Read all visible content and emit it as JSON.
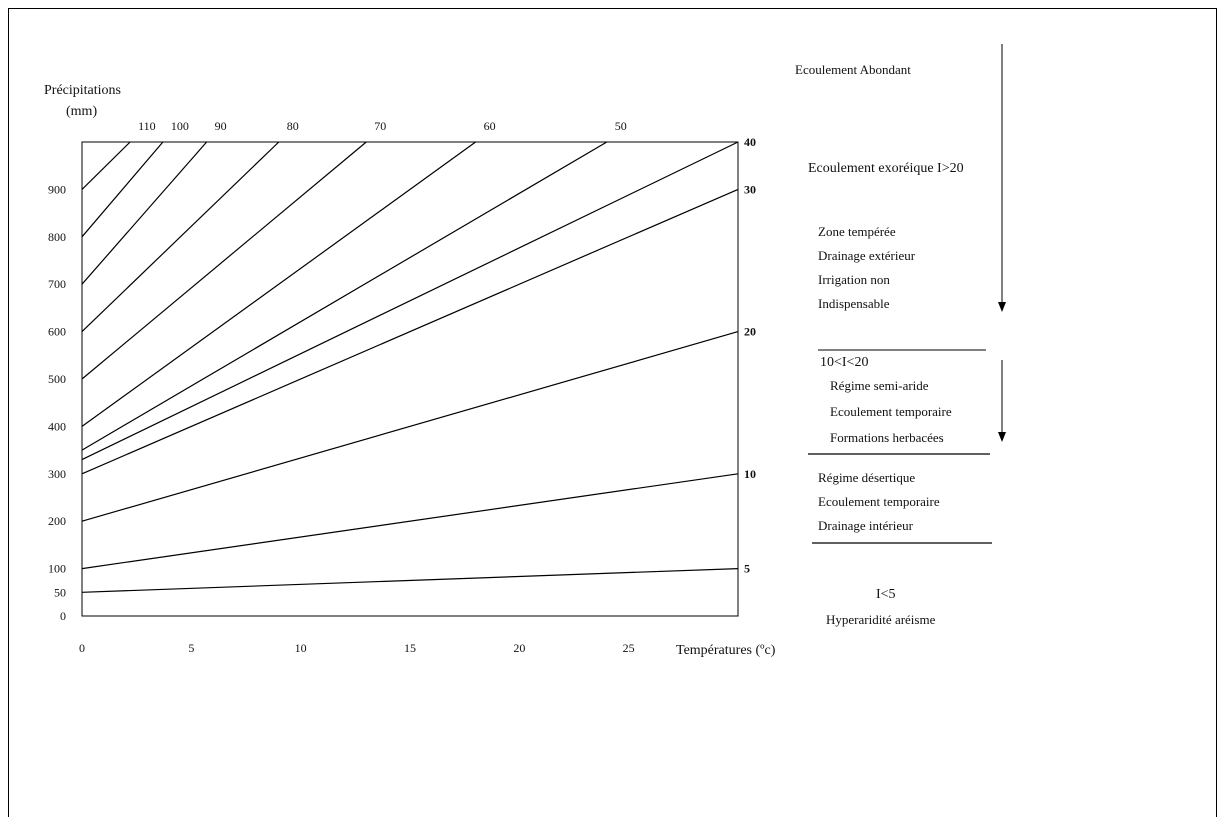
{
  "chart_data": {
    "type": "line",
    "title": "",
    "ylabel_line1": "Précipitations",
    "ylabel_line2": "(mm)",
    "xlabel": "Températures (ºc)",
    "xlim": [
      0,
      30
    ],
    "ylim": [
      0,
      1000
    ],
    "x_ticks": [
      "0",
      "5",
      "10",
      "15",
      "20",
      "25"
    ],
    "y_ticks": [
      "0",
      "50",
      "100",
      "200",
      "300",
      "400",
      "500",
      "600",
      "700",
      "800",
      "900"
    ],
    "series": [
      {
        "name": "5",
        "label_side": "right",
        "points": [
          [
            0,
            50
          ],
          [
            30,
            100
          ]
        ]
      },
      {
        "name": "10",
        "label_side": "right",
        "points": [
          [
            0,
            100
          ],
          [
            30,
            300
          ]
        ]
      },
      {
        "name": "20",
        "label_side": "right",
        "points": [
          [
            0,
            200
          ],
          [
            30,
            600
          ]
        ]
      },
      {
        "name": "30",
        "label_side": "right",
        "points": [
          [
            0,
            300
          ],
          [
            30,
            900
          ]
        ]
      },
      {
        "name": "40",
        "label_side": "right",
        "points": [
          [
            0,
            330
          ],
          [
            30,
            1000
          ]
        ]
      },
      {
        "name": "50",
        "label_side": "top",
        "points": [
          [
            0,
            350
          ],
          [
            24,
            1000
          ]
        ]
      },
      {
        "name": "60",
        "label_side": "top",
        "points": [
          [
            0,
            400
          ],
          [
            18,
            1000
          ]
        ]
      },
      {
        "name": "70",
        "label_side": "top",
        "points": [
          [
            0,
            500
          ],
          [
            13,
            1000
          ]
        ]
      },
      {
        "name": "80",
        "label_side": "top",
        "points": [
          [
            0,
            600
          ],
          [
            9,
            1000
          ]
        ]
      },
      {
        "name": "90",
        "label_side": "top",
        "points": [
          [
            0,
            700
          ],
          [
            5.7,
            1000
          ]
        ]
      },
      {
        "name": "100",
        "label_side": "top",
        "points": [
          [
            0,
            800
          ],
          [
            3.7,
            1000
          ]
        ]
      },
      {
        "name": "110",
        "label_side": "top",
        "points": [
          [
            0,
            900
          ],
          [
            2.2,
            1000
          ]
        ]
      }
    ]
  },
  "zones": {
    "abondant": "Ecoulement Abondant",
    "exoreique": "Ecoulement exoréique  I>20",
    "temperee": [
      "Zone tempérée",
      "Drainage extérieur",
      "Irrigation non",
      "Indispensable"
    ],
    "semiaride": [
      "10<I<20",
      "Régime semi-aride",
      "Ecoulement temporaire",
      "Formations herbacées"
    ],
    "desertique": [
      "Régime désertique",
      "Ecoulement temporaire",
      "Drainage intérieur"
    ],
    "hyper": [
      "I<5",
      "Hyperaridité aréisme"
    ]
  }
}
